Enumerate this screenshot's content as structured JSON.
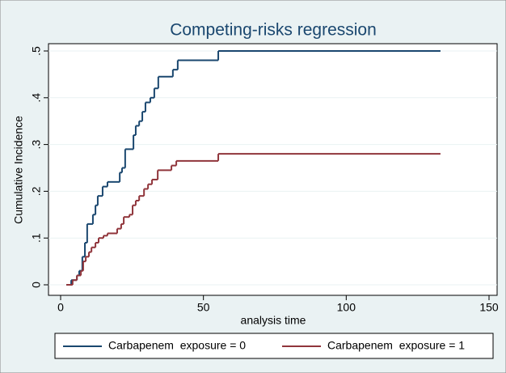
{
  "chart_data": {
    "type": "step",
    "title": "Competing-risks regression",
    "x_label": "analysis time",
    "y_label": "Cumulative Incidence",
    "xlim": [
      0,
      150
    ],
    "xticks": [
      0,
      50,
      100,
      150
    ],
    "ylim": [
      0,
      0.5
    ],
    "yticks": [
      0,
      {
        "value": 0.1,
        "label": ".1"
      },
      {
        "value": 0.2,
        "label": ".2"
      },
      {
        "value": 0.3,
        "label": ".3"
      },
      {
        "value": 0.4,
        "label": ".4"
      },
      {
        "value": 0.5,
        "label": ".5"
      }
    ],
    "grid": true,
    "legend": "bottom",
    "series": [
      {
        "name": "Carbapenem  exposure = 0",
        "color": "#1a476f",
        "x": [
          2,
          3.7,
          5.7,
          6.5,
          7.6,
          8.5,
          9.3,
          11.3,
          12.2,
          13,
          14.7,
          16.4,
          20.7,
          21.5,
          22.6,
          25.5,
          26.3,
          27.5,
          28.6,
          29.7,
          31.4,
          32.8,
          34.2,
          39.3,
          41,
          55.2,
          133
        ],
        "values": [
          0,
          0.01,
          0.02,
          0.03,
          0.06,
          0.09,
          0.13,
          0.15,
          0.17,
          0.19,
          0.21,
          0.22,
          0.24,
          0.25,
          0.29,
          0.32,
          0.34,
          0.35,
          0.37,
          0.39,
          0.4,
          0.42,
          0.445,
          0.46,
          0.48,
          0.5,
          0.5
        ]
      },
      {
        "name": "Carbapenem  exposure = 1",
        "color": "#90353b",
        "x": [
          2,
          4.2,
          5.7,
          7.1,
          7.9,
          8.8,
          9.9,
          10.8,
          12.2,
          13.3,
          15,
          16.4,
          19.8,
          21.2,
          22.1,
          24.1,
          25.2,
          26.3,
          27.5,
          29.2,
          30.6,
          32,
          34,
          38.8,
          40.5,
          55.2,
          133
        ],
        "values": [
          0,
          0.01,
          0.02,
          0.03,
          0.05,
          0.06,
          0.07,
          0.08,
          0.09,
          0.1,
          0.105,
          0.11,
          0.12,
          0.13,
          0.145,
          0.15,
          0.17,
          0.18,
          0.19,
          0.205,
          0.215,
          0.225,
          0.245,
          0.255,
          0.265,
          0.28,
          0.28
        ]
      }
    ]
  }
}
